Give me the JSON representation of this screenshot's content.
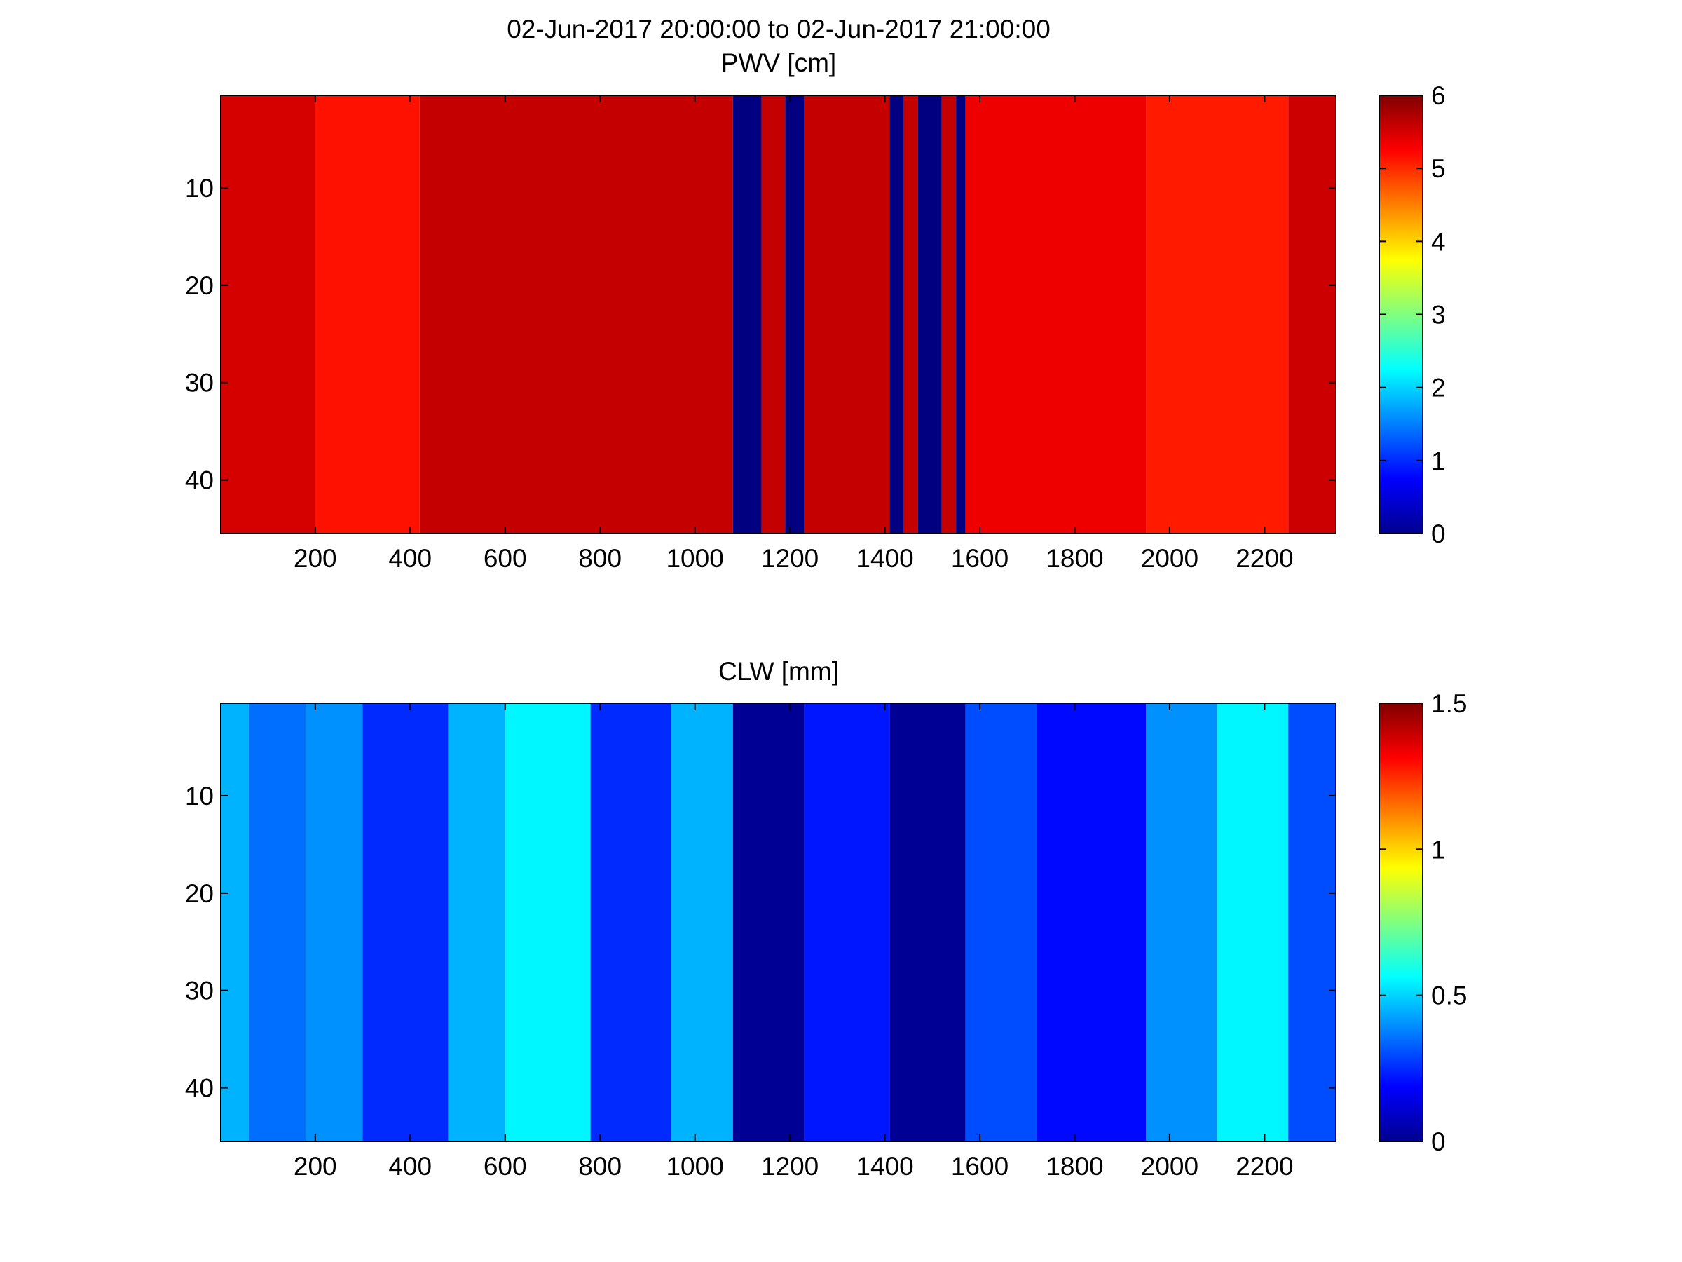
{
  "figure": {
    "title": "02-Jun-2017 20:00:00 to 02-Jun-2017 21:00:00"
  },
  "chart_data": [
    {
      "type": "heatmap",
      "title": "PWV [cm]",
      "xlabel": "",
      "ylabel": "",
      "xlim": [
        1,
        2350
      ],
      "ylim": [
        0.5,
        45.5
      ],
      "y_reversed": true,
      "xticks": [
        200,
        400,
        600,
        800,
        1000,
        1200,
        1400,
        1600,
        1800,
        2000,
        2200
      ],
      "yticks": [
        10,
        20,
        30,
        40
      ],
      "clim": [
        0,
        6
      ],
      "colorbar_ticks": [
        0,
        1,
        2,
        3,
        4,
        5,
        6
      ],
      "colormap": "jet",
      "rows": 45,
      "column_profile": [
        {
          "x0": 1,
          "x1": 200,
          "value": 5.5
        },
        {
          "x0": 200,
          "x1": 420,
          "value": 5.15
        },
        {
          "x0": 420,
          "x1": 1080,
          "value": 5.6
        },
        {
          "x0": 1080,
          "x1": 1140,
          "value": 0
        },
        {
          "x0": 1140,
          "x1": 1190,
          "value": 5.6
        },
        {
          "x0": 1190,
          "x1": 1230,
          "value": 0
        },
        {
          "x0": 1230,
          "x1": 1410,
          "value": 5.6
        },
        {
          "x0": 1410,
          "x1": 1440,
          "value": 0
        },
        {
          "x0": 1440,
          "x1": 1470,
          "value": 5.6
        },
        {
          "x0": 1470,
          "x1": 1520,
          "value": 0
        },
        {
          "x0": 1520,
          "x1": 1550,
          "value": 5.6
        },
        {
          "x0": 1550,
          "x1": 1570,
          "value": 0
        },
        {
          "x0": 1570,
          "x1": 1950,
          "value": 5.35
        },
        {
          "x0": 1950,
          "x1": 2250,
          "value": 5.1
        },
        {
          "x0": 2250,
          "x1": 2350,
          "value": 5.55
        }
      ]
    },
    {
      "type": "heatmap",
      "title": "CLW [mm]",
      "xlabel": "",
      "ylabel": "",
      "xlim": [
        1,
        2350
      ],
      "ylim": [
        0.5,
        45.5
      ],
      "y_reversed": true,
      "xticks": [
        200,
        400,
        600,
        800,
        1000,
        1200,
        1400,
        1600,
        1800,
        2000,
        2200
      ],
      "yticks": [
        10,
        20,
        30,
        40
      ],
      "clim": [
        0,
        1.5
      ],
      "colorbar_ticks": [
        0,
        0.5,
        1,
        1.5
      ],
      "colorbar_tick_labels": [
        "0",
        "0.5",
        "1",
        "1.5"
      ],
      "colormap": "jet",
      "rows": 45,
      "column_profile": [
        {
          "x0": 1,
          "x1": 60,
          "value": 0.45
        },
        {
          "x0": 60,
          "x1": 180,
          "value": 0.35
        },
        {
          "x0": 180,
          "x1": 300,
          "value": 0.4
        },
        {
          "x0": 300,
          "x1": 480,
          "value": 0.25
        },
        {
          "x0": 480,
          "x1": 600,
          "value": 0.45
        },
        {
          "x0": 600,
          "x1": 780,
          "value": 0.55
        },
        {
          "x0": 780,
          "x1": 950,
          "value": 0.25
        },
        {
          "x0": 950,
          "x1": 1080,
          "value": 0.45
        },
        {
          "x0": 1080,
          "x1": 1230,
          "value": 0.03
        },
        {
          "x0": 1230,
          "x1": 1410,
          "value": 0.22
        },
        {
          "x0": 1410,
          "x1": 1570,
          "value": 0.03
        },
        {
          "x0": 1570,
          "x1": 1720,
          "value": 0.3
        },
        {
          "x0": 1720,
          "x1": 1950,
          "value": 0.2
        },
        {
          "x0": 1950,
          "x1": 2100,
          "value": 0.4
        },
        {
          "x0": 2100,
          "x1": 2250,
          "value": 0.55
        },
        {
          "x0": 2250,
          "x1": 2350,
          "value": 0.3
        }
      ]
    }
  ]
}
